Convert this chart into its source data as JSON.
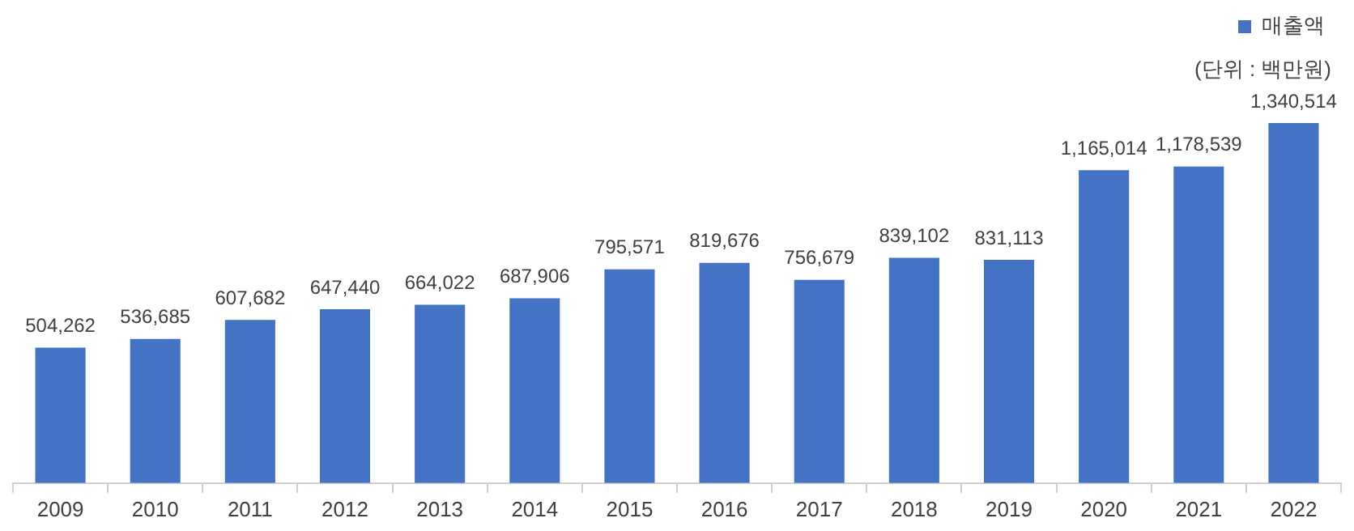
{
  "chart_data": {
    "type": "bar",
    "categories": [
      "2009",
      "2010",
      "2011",
      "2012",
      "2013",
      "2014",
      "2015",
      "2016",
      "2017",
      "2018",
      "2019",
      "2020",
      "2021",
      "2022"
    ],
    "series": [
      {
        "name": "매출액",
        "color": "#4472c4",
        "values": [
          504262,
          536685,
          607682,
          647440,
          664022,
          687906,
          795571,
          819676,
          756679,
          839102,
          831113,
          1165014,
          1178539,
          1340514
        ],
        "value_labels": [
          "504,262",
          "536,685",
          "607,682",
          "647,440",
          "664,022",
          "687,906",
          "795,571",
          "819,676",
          "756,679",
          "839,102",
          "831,113",
          "1,165,014",
          "1,178,539",
          "1,340,514"
        ]
      }
    ],
    "legend": "top right",
    "grid": false,
    "tick_labels": "x",
    "annotations": [
      "(단위 : 백만원)"
    ]
  }
}
